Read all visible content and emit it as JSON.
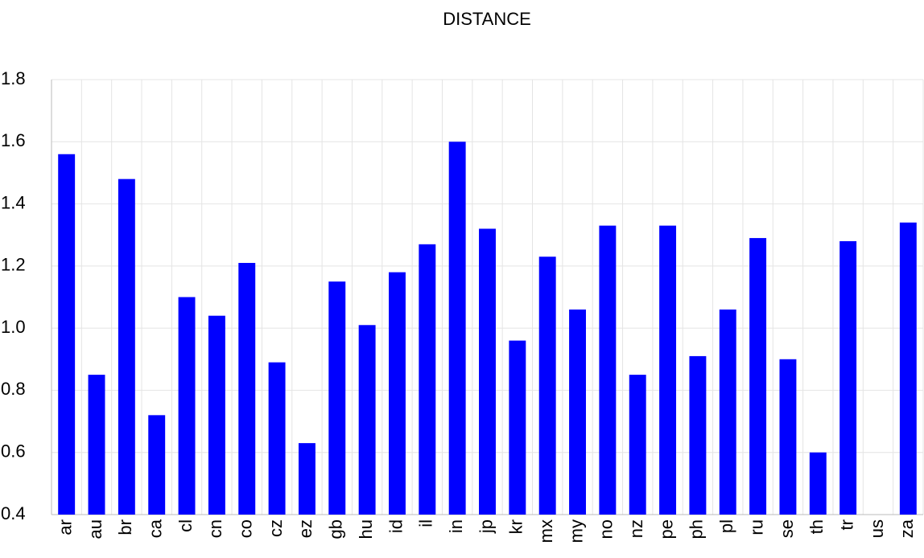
{
  "chart_data": {
    "type": "bar",
    "title": "DISTANCE",
    "categories": [
      "ar",
      "au",
      "br",
      "ca",
      "cl",
      "cn",
      "co",
      "cz",
      "ez",
      "gb",
      "hu",
      "id",
      "il",
      "in",
      "jp",
      "kr",
      "mx",
      "my",
      "no",
      "nz",
      "pe",
      "ph",
      "pl",
      "ru",
      "se",
      "th",
      "tr",
      "us",
      "za"
    ],
    "values": [
      1.56,
      0.85,
      1.48,
      0.72,
      1.1,
      1.04,
      1.21,
      0.89,
      0.63,
      1.15,
      1.01,
      1.18,
      1.27,
      1.6,
      1.32,
      0.96,
      1.23,
      1.06,
      1.33,
      0.85,
      1.33,
      0.91,
      1.06,
      1.29,
      0.9,
      0.6,
      1.28,
      null,
      1.34
    ],
    "color": "#0000ff",
    "ylim": [
      0.4,
      1.8
    ],
    "yticks": [
      0.4,
      0.6,
      0.8,
      {
        "value": 1,
        "label": "1.0"
      },
      1.2,
      1.4,
      1.6,
      1.8
    ],
    "grid": true
  }
}
